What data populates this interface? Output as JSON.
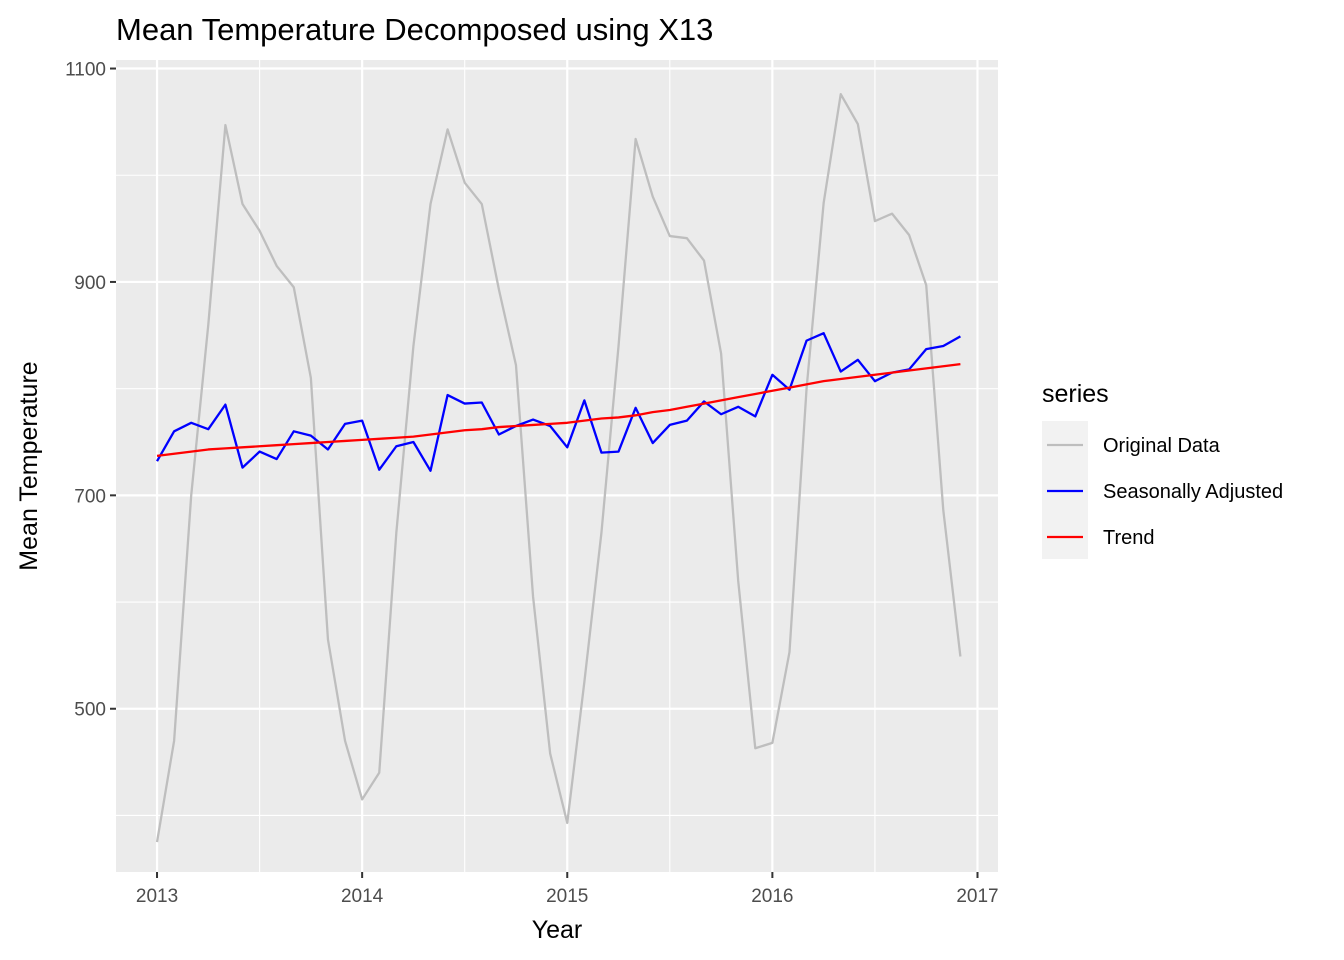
{
  "chart_data": {
    "type": "line",
    "title": "Mean Temperature Decomposed using X13",
    "xlabel": "Year",
    "ylabel": "Mean Temperature",
    "xlim": [
      2012.8,
      2017.1
    ],
    "ylim": [
      347,
      1108
    ],
    "x_ticks": [
      2013,
      2014,
      2015,
      2016,
      2017
    ],
    "y_ticks": [
      500,
      700,
      900,
      1100
    ],
    "x_start": 2013,
    "x_step": 0.08333333,
    "grid": true,
    "legend": {
      "title": "series",
      "placement": "right",
      "entries": [
        "Original Data",
        "Seasonally Adjusted",
        "Trend"
      ]
    },
    "series": [
      {
        "name": "Original Data",
        "color": "#bebebe",
        "values": [
          375,
          470,
          700,
          860,
          1047,
          973,
          948,
          915,
          895,
          810,
          565,
          470,
          415,
          440,
          665,
          840,
          973,
          1043,
          993,
          973,
          893,
          822,
          605,
          458,
          393,
          525,
          665,
          840,
          1034,
          980,
          943,
          941,
          920,
          833,
          620,
          463,
          468,
          553,
          800,
          974,
          1076,
          1048,
          957,
          964,
          944,
          897,
          686,
          549
        ]
      },
      {
        "name": "Seasonally Adjusted",
        "color": "#0000ff",
        "values": [
          732,
          760,
          768,
          762,
          785,
          726,
          741,
          734,
          760,
          756,
          743,
          767,
          770,
          724,
          746,
          750,
          723,
          794,
          786,
          787,
          757,
          765,
          771,
          765,
          745,
          789,
          740,
          741,
          782,
          749,
          766,
          770,
          788,
          776,
          783,
          774,
          813,
          799,
          845,
          852,
          816,
          827,
          807,
          815,
          818,
          837,
          840,
          849
        ]
      },
      {
        "name": "Trend",
        "color": "#ff0000",
        "values": [
          737,
          739,
          741,
          743,
          744,
          745,
          746,
          747,
          748,
          749,
          750,
          751,
          752,
          753,
          754,
          755,
          757,
          759,
          761,
          762,
          764,
          765,
          766,
          767,
          768,
          770,
          772,
          773,
          775,
          778,
          780,
          783,
          786,
          789,
          792,
          795,
          798,
          801,
          804,
          807,
          809,
          811,
          813,
          815,
          817,
          819,
          821,
          823
        ]
      }
    ]
  }
}
